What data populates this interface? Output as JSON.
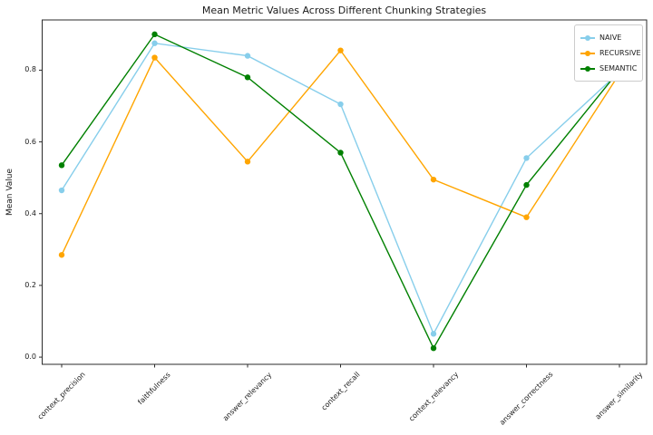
{
  "figure": {
    "background": "#ffffff"
  },
  "chart_data": {
    "type": "line",
    "title": "Mean Metric Values Across Different Chunking Strategies",
    "xlabel": "",
    "ylabel": "Mean Value",
    "categories": [
      "context_precision",
      "faithfulness",
      "answer_relevancy",
      "context_recall",
      "context_relevancy",
      "answer_correctness",
      "answer_similarity"
    ],
    "series": [
      {
        "name": "NAIVE",
        "color": "#87CEEB",
        "values": [
          0.465,
          0.875,
          0.84,
          0.705,
          0.065,
          0.555,
          0.795
        ]
      },
      {
        "name": "RECURSIVE",
        "color": "#FFA500",
        "values": [
          0.285,
          0.835,
          0.545,
          0.855,
          0.495,
          0.39,
          0.79
        ]
      },
      {
        "name": "SEMANTIC",
        "color": "#008000",
        "values": [
          0.535,
          0.9,
          0.78,
          0.57,
          0.025,
          0.48,
          0.8
        ]
      }
    ],
    "yticks": [
      "0.0",
      "0.2",
      "0.4",
      "0.6",
      "0.8"
    ],
    "ylim": [
      -0.02,
      0.94
    ],
    "grid": false,
    "legend_position": "upper right",
    "marker": "circle",
    "x_tick_rotation": 45,
    "spine_color": "#2b2b2b"
  }
}
